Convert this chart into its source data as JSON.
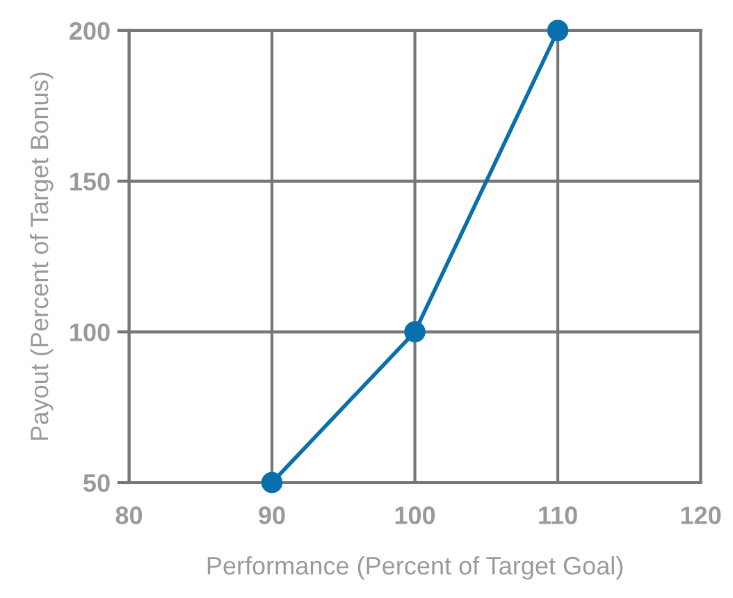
{
  "chart_data": {
    "type": "line",
    "xlabel": "Performance (Percent of Target Goal)",
    "ylabel": "Payout (Percent of Target Bonus)",
    "x": [
      90,
      100,
      110
    ],
    "series": [
      {
        "color": "#0a6fae",
        "values": [
          50,
          100,
          200
        ]
      }
    ],
    "xlim": [
      80,
      120
    ],
    "xticks": [
      80,
      90,
      100,
      110,
      120
    ],
    "ylim": [
      50,
      200
    ],
    "yticks": [
      50,
      100,
      150,
      200
    ],
    "grid": true,
    "marker": "circle",
    "line_style": "solid"
  }
}
